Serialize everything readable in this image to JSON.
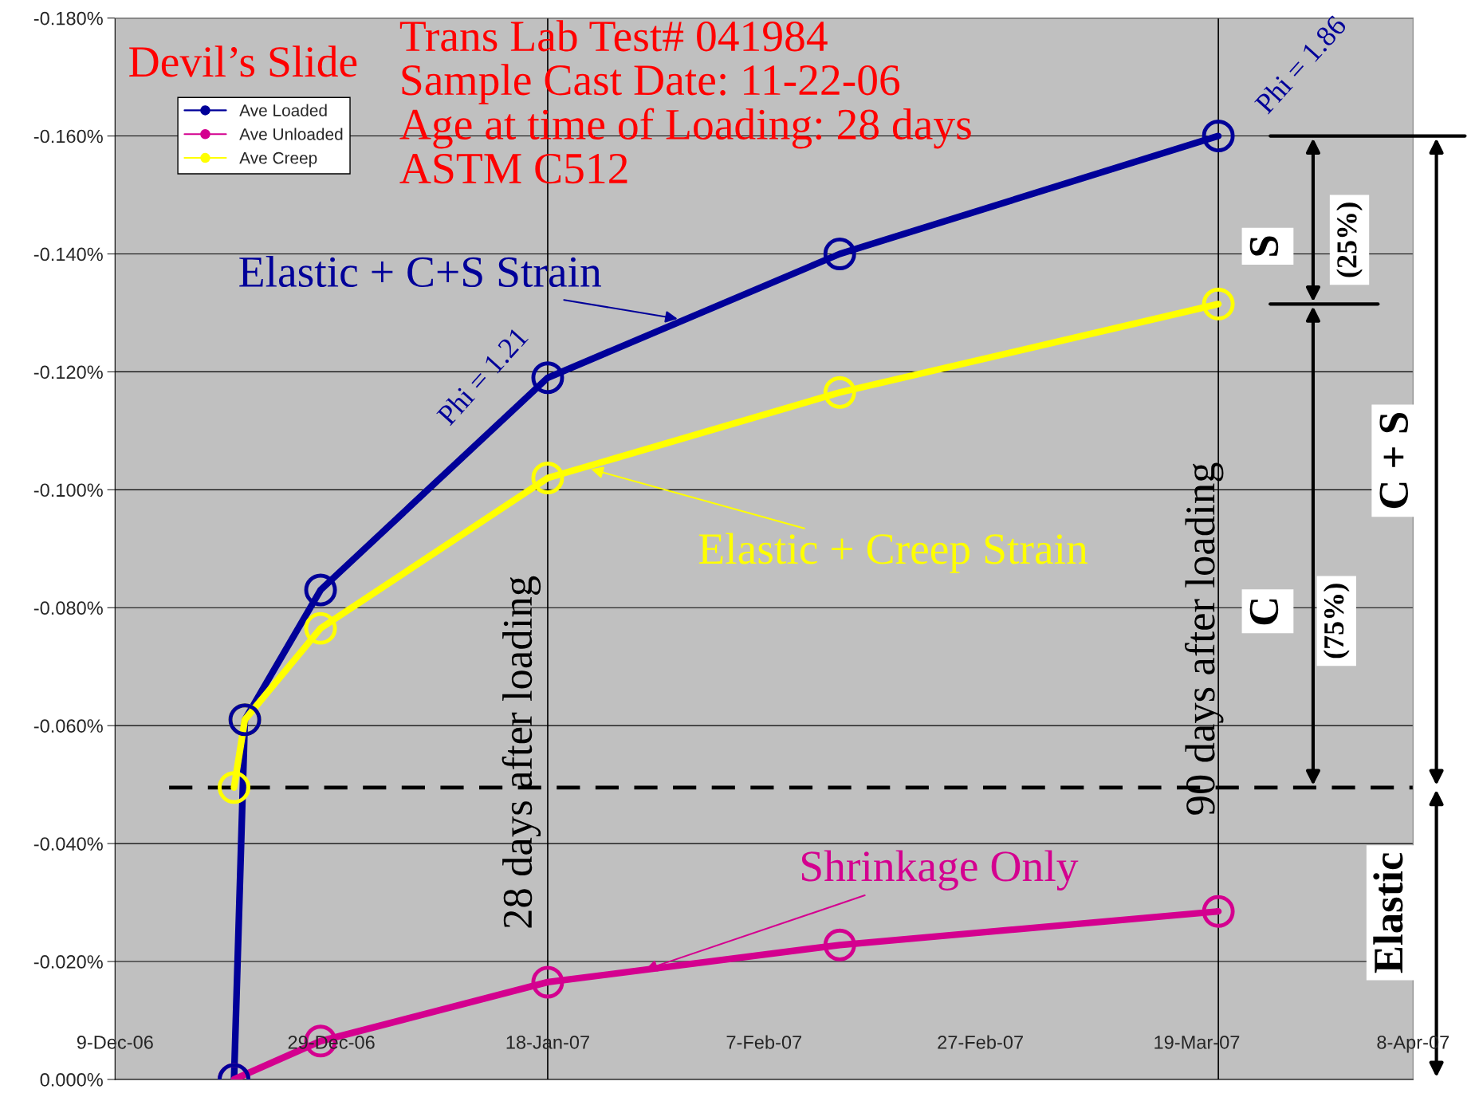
{
  "chart_data": {
    "type": "line",
    "title": "Devil’s Slide",
    "subtitle": "Trans Lab Test# 041984\nSample Cast Date: 11-22-06\nAge at time of Loading: 28 days\nASTM C512",
    "series": [
      {
        "name": "Ave Loaded",
        "color": "#000099",
        "x": [
          "2006-12-20",
          "2006-12-21",
          "2006-12-28",
          "2007-01-18",
          "2007-02-14",
          "2007-03-21"
        ],
        "values": [
          0.0,
          -0.061,
          -0.083,
          -0.119,
          -0.14,
          -0.16
        ]
      },
      {
        "name": "Ave Unloaded",
        "color": "#d4008f",
        "x": [
          "2006-12-20",
          "2006-12-28",
          "2007-01-18",
          "2007-02-14",
          "2007-03-21"
        ],
        "values": [
          0.0,
          -0.0065,
          -0.0165,
          -0.0228,
          -0.0285
        ]
      },
      {
        "name": "Ave Creep",
        "color": "#ffff00",
        "x": [
          "2006-12-20",
          "2006-12-21",
          "2006-12-28",
          "2007-01-18",
          "2007-02-14",
          "2007-03-21"
        ],
        "values": [
          -0.0495,
          -0.061,
          -0.0765,
          -0.102,
          -0.1165,
          -0.1315
        ]
      }
    ],
    "xlim": [
      "2006-12-09",
      "2007-04-08"
    ],
    "xticks": [
      {
        "value": "2006-12-09",
        "label": "9-Dec-06"
      },
      {
        "value": "2006-12-29",
        "label": "29-Dec-06"
      },
      {
        "value": "2007-01-18",
        "label": "18-Jan-07"
      },
      {
        "value": "2007-02-07",
        "label": "7-Feb-07"
      },
      {
        "value": "2007-02-27",
        "label": "27-Feb-07"
      },
      {
        "value": "2007-03-19",
        "label": "19-Mar-07"
      },
      {
        "value": "2007-04-08",
        "label": "8-Apr-07"
      }
    ],
    "ylim": [
      0.0,
      -0.18
    ],
    "yticks": [
      {
        "value": 0.0,
        "label": "0.000%"
      },
      {
        "value": -0.02,
        "label": "-0.020%"
      },
      {
        "value": -0.04,
        "label": "-0.040%"
      },
      {
        "value": -0.06,
        "label": "-0.060%"
      },
      {
        "value": -0.08,
        "label": "-0.080%"
      },
      {
        "value": -0.1,
        "label": "-0.100%"
      },
      {
        "value": -0.12,
        "label": "-0.120%"
      },
      {
        "value": -0.14,
        "label": "-0.140%"
      },
      {
        "value": -0.16,
        "label": "-0.160%"
      },
      {
        "value": -0.18,
        "label": "-0.180%"
      }
    ],
    "grid": "y",
    "legend": "top left",
    "marker": "circle",
    "line_style": "solid",
    "ref_lines": [
      {
        "axis": "y",
        "value": -0.0495,
        "color": "#000000",
        "line_style": "dashed"
      },
      {
        "axis": "x",
        "value": "2007-01-18",
        "label": "28 days after loading",
        "color": "#000000",
        "line_style": "solid"
      },
      {
        "axis": "x",
        "value": "2007-03-21",
        "label": "90 days after loading",
        "color": "#000000",
        "line_style": "solid"
      }
    ],
    "annotations": [
      {
        "text": "Elastic + C+S Strain",
        "x": "2007-01-30",
        "y": -0.129
      },
      {
        "text": "Elastic + Creep Strain",
        "x": "2007-01-22",
        "y": -0.1035
      },
      {
        "text": "Shrinkage Only",
        "x": "2007-01-27",
        "y": -0.0186
      },
      {
        "text": "Phi = 1.21",
        "x": "2007-01-18",
        "y": -0.119
      },
      {
        "text": "Phi = 1.86",
        "x": "2007-03-21",
        "y": -0.16
      },
      "S",
      "(25%)",
      "C",
      "(75%)",
      "C + S",
      "Elastic"
    ]
  }
}
